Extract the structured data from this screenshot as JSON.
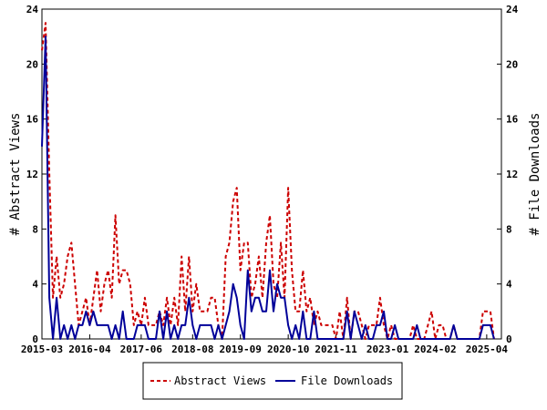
{
  "chart_data": {
    "type": "line",
    "title": "",
    "xlabel": "",
    "ylabel_left": "# Abstract Views",
    "ylabel_right": "# File Downloads",
    "ylim": [
      0,
      24
    ],
    "yticks": [
      0,
      4,
      8,
      12,
      16,
      20,
      24
    ],
    "xlim": [
      "2015-03",
      "2025-08"
    ],
    "xticks": [
      "2015-03",
      "2016-04",
      "2017-06",
      "2018-08",
      "2019-09",
      "2020-10",
      "2021-11",
      "2023-01",
      "2024-02",
      "2025-04"
    ],
    "grid": false,
    "legend_position": "bottom",
    "colors": {
      "abstract_views": "#cc0000",
      "file_downloads": "#000099"
    },
    "series": [
      {
        "name": "Abstract Views",
        "key": "abstract_views",
        "style": "dashed",
        "points": [
          [
            "2015-03",
            21
          ],
          [
            "2015-04",
            23
          ],
          [
            "2015-05",
            12
          ],
          [
            "2015-06",
            3
          ],
          [
            "2015-07",
            6
          ],
          [
            "2015-08",
            3
          ],
          [
            "2015-09",
            4
          ],
          [
            "2015-10",
            6
          ],
          [
            "2015-11",
            7
          ],
          [
            "2015-12",
            4
          ],
          [
            "2016-01",
            1
          ],
          [
            "2016-02",
            2
          ],
          [
            "2016-03",
            3
          ],
          [
            "2016-04",
            1
          ],
          [
            "2016-05",
            3
          ],
          [
            "2016-06",
            5
          ],
          [
            "2016-07",
            2
          ],
          [
            "2016-08",
            4
          ],
          [
            "2016-09",
            5
          ],
          [
            "2016-10",
            3
          ],
          [
            "2016-11",
            9
          ],
          [
            "2016-12",
            4
          ],
          [
            "2017-01",
            5
          ],
          [
            "2017-02",
            5
          ],
          [
            "2017-03",
            4
          ],
          [
            "2017-04",
            1
          ],
          [
            "2017-05",
            2
          ],
          [
            "2017-06",
            1
          ],
          [
            "2017-07",
            3
          ],
          [
            "2017-08",
            1
          ],
          [
            "2017-09",
            1
          ],
          [
            "2017-10",
            1
          ],
          [
            "2017-11",
            2
          ],
          [
            "2017-12",
            1
          ],
          [
            "2018-01",
            3
          ],
          [
            "2018-02",
            1
          ],
          [
            "2018-03",
            3
          ],
          [
            "2018-04",
            1
          ],
          [
            "2018-05",
            6
          ],
          [
            "2018-06",
            2
          ],
          [
            "2018-07",
            6
          ],
          [
            "2018-08",
            2
          ],
          [
            "2018-09",
            4
          ],
          [
            "2018-10",
            2
          ],
          [
            "2018-11",
            2
          ],
          [
            "2018-12",
            2
          ],
          [
            "2019-01",
            3
          ],
          [
            "2019-02",
            3
          ],
          [
            "2019-03",
            1
          ],
          [
            "2019-04",
            0
          ],
          [
            "2019-05",
            6
          ],
          [
            "2019-06",
            7
          ],
          [
            "2019-07",
            10
          ],
          [
            "2019-08",
            11
          ],
          [
            "2019-09",
            5
          ],
          [
            "2019-10",
            7
          ],
          [
            "2019-11",
            7
          ],
          [
            "2019-12",
            3
          ],
          [
            "2020-01",
            4
          ],
          [
            "2020-02",
            6
          ],
          [
            "2020-03",
            3
          ],
          [
            "2020-04",
            7
          ],
          [
            "2020-05",
            9
          ],
          [
            "2020-06",
            4
          ],
          [
            "2020-07",
            3
          ],
          [
            "2020-08",
            7
          ],
          [
            "2020-09",
            3
          ],
          [
            "2020-10",
            11
          ],
          [
            "2020-11",
            5
          ],
          [
            "2020-12",
            2
          ],
          [
            "2021-01",
            2
          ],
          [
            "2021-02",
            5
          ],
          [
            "2021-03",
            2
          ],
          [
            "2021-04",
            3
          ],
          [
            "2021-05",
            1
          ],
          [
            "2021-06",
            2
          ],
          [
            "2021-07",
            1
          ],
          [
            "2021-08",
            1
          ],
          [
            "2021-09",
            1
          ],
          [
            "2021-10",
            1
          ],
          [
            "2021-11",
            0
          ],
          [
            "2021-12",
            2
          ],
          [
            "2022-01",
            0
          ],
          [
            "2022-02",
            3
          ],
          [
            "2022-03",
            0
          ],
          [
            "2022-04",
            2
          ],
          [
            "2022-05",
            2
          ],
          [
            "2022-06",
            1
          ],
          [
            "2022-07",
            0
          ],
          [
            "2022-08",
            1
          ],
          [
            "2022-09",
            1
          ],
          [
            "2022-10",
            1
          ],
          [
            "2022-11",
            3
          ],
          [
            "2022-12",
            1
          ],
          [
            "2023-01",
            0
          ],
          [
            "2023-02",
            1
          ],
          [
            "2023-03",
            0
          ],
          [
            "2023-04",
            0
          ],
          [
            "2023-05",
            0
          ],
          [
            "2023-06",
            0
          ],
          [
            "2023-07",
            0
          ],
          [
            "2023-08",
            1
          ],
          [
            "2023-09",
            0
          ],
          [
            "2023-10",
            0
          ],
          [
            "2023-11",
            0
          ],
          [
            "2023-12",
            1
          ],
          [
            "2024-01",
            2
          ],
          [
            "2024-02",
            0
          ],
          [
            "2024-03",
            1
          ],
          [
            "2024-04",
            1
          ],
          [
            "2024-05",
            0
          ],
          [
            "2024-06",
            0
          ],
          [
            "2024-07",
            1
          ],
          [
            "2024-08",
            0
          ],
          [
            "2024-09",
            0
          ],
          [
            "2024-10",
            0
          ],
          [
            "2024-11",
            0
          ],
          [
            "2024-12",
            0
          ],
          [
            "2025-01",
            0
          ],
          [
            "2025-02",
            0
          ],
          [
            "2025-03",
            2
          ],
          [
            "2025-04",
            2
          ],
          [
            "2025-05",
            2
          ],
          [
            "2025-06",
            0
          ]
        ]
      },
      {
        "name": "File Downloads",
        "key": "file_downloads",
        "style": "solid",
        "points": [
          [
            "2015-03",
            14
          ],
          [
            "2015-04",
            22
          ],
          [
            "2015-05",
            3
          ],
          [
            "2015-06",
            0
          ],
          [
            "2015-07",
            3
          ],
          [
            "2015-08",
            0
          ],
          [
            "2015-09",
            1
          ],
          [
            "2015-10",
            0
          ],
          [
            "2015-11",
            1
          ],
          [
            "2015-12",
            0
          ],
          [
            "2016-01",
            1
          ],
          [
            "2016-02",
            1
          ],
          [
            "2016-03",
            2
          ],
          [
            "2016-04",
            1
          ],
          [
            "2016-05",
            2
          ],
          [
            "2016-06",
            1
          ],
          [
            "2016-07",
            1
          ],
          [
            "2016-08",
            1
          ],
          [
            "2016-09",
            1
          ],
          [
            "2016-10",
            0
          ],
          [
            "2016-11",
            1
          ],
          [
            "2016-12",
            0
          ],
          [
            "2017-01",
            2
          ],
          [
            "2017-02",
            0
          ],
          [
            "2017-03",
            0
          ],
          [
            "2017-04",
            0
          ],
          [
            "2017-05",
            1
          ],
          [
            "2017-06",
            1
          ],
          [
            "2017-07",
            1
          ],
          [
            "2017-08",
            0
          ],
          [
            "2017-09",
            0
          ],
          [
            "2017-10",
            0
          ],
          [
            "2017-11",
            2
          ],
          [
            "2017-12",
            0
          ],
          [
            "2018-01",
            2
          ],
          [
            "2018-02",
            0
          ],
          [
            "2018-03",
            1
          ],
          [
            "2018-04",
            0
          ],
          [
            "2018-05",
            1
          ],
          [
            "2018-06",
            1
          ],
          [
            "2018-07",
            3
          ],
          [
            "2018-08",
            1
          ],
          [
            "2018-09",
            0
          ],
          [
            "2018-10",
            1
          ],
          [
            "2018-11",
            1
          ],
          [
            "2018-12",
            1
          ],
          [
            "2019-01",
            1
          ],
          [
            "2019-02",
            0
          ],
          [
            "2019-03",
            1
          ],
          [
            "2019-04",
            0
          ],
          [
            "2019-05",
            1
          ],
          [
            "2019-06",
            2
          ],
          [
            "2019-07",
            4
          ],
          [
            "2019-08",
            3
          ],
          [
            "2019-09",
            1
          ],
          [
            "2019-10",
            0
          ],
          [
            "2019-11",
            5
          ],
          [
            "2019-12",
            2
          ],
          [
            "2020-01",
            3
          ],
          [
            "2020-02",
            3
          ],
          [
            "2020-03",
            2
          ],
          [
            "2020-04",
            2
          ],
          [
            "2020-05",
            5
          ],
          [
            "2020-06",
            2
          ],
          [
            "2020-07",
            4
          ],
          [
            "2020-08",
            3
          ],
          [
            "2020-09",
            3
          ],
          [
            "2020-10",
            1
          ],
          [
            "2020-11",
            0
          ],
          [
            "2020-12",
            1
          ],
          [
            "2021-01",
            0
          ],
          [
            "2021-02",
            2
          ],
          [
            "2021-03",
            0
          ],
          [
            "2021-04",
            0
          ],
          [
            "2021-05",
            2
          ],
          [
            "2021-06",
            0
          ],
          [
            "2021-07",
            0
          ],
          [
            "2021-08",
            0
          ],
          [
            "2021-09",
            0
          ],
          [
            "2021-10",
            0
          ],
          [
            "2021-11",
            0
          ],
          [
            "2021-12",
            0
          ],
          [
            "2022-01",
            0
          ],
          [
            "2022-02",
            2
          ],
          [
            "2022-03",
            0
          ],
          [
            "2022-04",
            2
          ],
          [
            "2022-05",
            1
          ],
          [
            "2022-06",
            0
          ],
          [
            "2022-07",
            1
          ],
          [
            "2022-08",
            0
          ],
          [
            "2022-09",
            0
          ],
          [
            "2022-10",
            1
          ],
          [
            "2022-11",
            1
          ],
          [
            "2022-12",
            2
          ],
          [
            "2023-01",
            0
          ],
          [
            "2023-02",
            0
          ],
          [
            "2023-03",
            1
          ],
          [
            "2023-04",
            0
          ],
          [
            "2023-05",
            0
          ],
          [
            "2023-06",
            0
          ],
          [
            "2023-07",
            0
          ],
          [
            "2023-08",
            0
          ],
          [
            "2023-09",
            1
          ],
          [
            "2023-10",
            0
          ],
          [
            "2023-11",
            0
          ],
          [
            "2023-12",
            0
          ],
          [
            "2024-01",
            0
          ],
          [
            "2024-02",
            0
          ],
          [
            "2024-03",
            0
          ],
          [
            "2024-04",
            0
          ],
          [
            "2024-05",
            0
          ],
          [
            "2024-06",
            0
          ],
          [
            "2024-07",
            1
          ],
          [
            "2024-08",
            0
          ],
          [
            "2024-09",
            0
          ],
          [
            "2024-10",
            0
          ],
          [
            "2024-11",
            0
          ],
          [
            "2024-12",
            0
          ],
          [
            "2025-01",
            0
          ],
          [
            "2025-02",
            0
          ],
          [
            "2025-03",
            1
          ],
          [
            "2025-04",
            1
          ],
          [
            "2025-05",
            1
          ],
          [
            "2025-06",
            0
          ]
        ]
      }
    ]
  }
}
